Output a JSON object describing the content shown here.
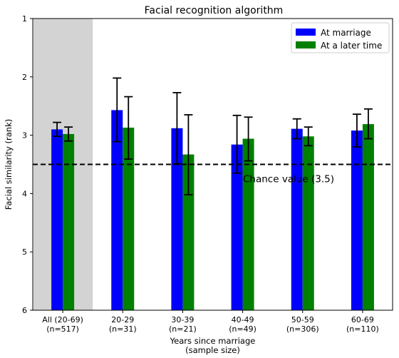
{
  "chart_data": {
    "type": "bar",
    "title": "Facial recognition algorithm",
    "xlabel": "Years since marriage\n(sample size)",
    "ylabel": "Facial similarity (rank)",
    "ylim": [
      6,
      1
    ],
    "y_inverted": true,
    "yticks": [
      1,
      2,
      3,
      4,
      5,
      6
    ],
    "grid": false,
    "legend_position": "top-right",
    "categories": [
      "All (20-69)\n(n=517)",
      "20-29\n(n=31)",
      "30-39\n(n=21)",
      "40-49\n(n=49)",
      "50-59\n(n=306)",
      "60-69\n(n=110)"
    ],
    "highlight_category": 0,
    "series": [
      {
        "name": "At marriage",
        "color": "#0000ff",
        "values": [
          2.9,
          2.57,
          2.88,
          3.16,
          2.89,
          2.92
        ],
        "err_low": [
          2.78,
          2.02,
          2.27,
          2.66,
          2.72,
          2.64
        ],
        "err_high": [
          3.02,
          3.11,
          3.49,
          3.65,
          3.06,
          3.2
        ]
      },
      {
        "name": "At a later time",
        "color": "#008000",
        "values": [
          2.98,
          2.87,
          3.33,
          3.06,
          3.02,
          2.81
        ],
        "err_low": [
          2.86,
          2.34,
          2.65,
          2.69,
          2.86,
          2.55
        ],
        "err_high": [
          3.1,
          3.41,
          4.02,
          3.44,
          3.18,
          3.06
        ]
      }
    ],
    "reference_line": {
      "value": 3.5,
      "label": "Chance value (3.5)",
      "style": "dashed"
    }
  }
}
